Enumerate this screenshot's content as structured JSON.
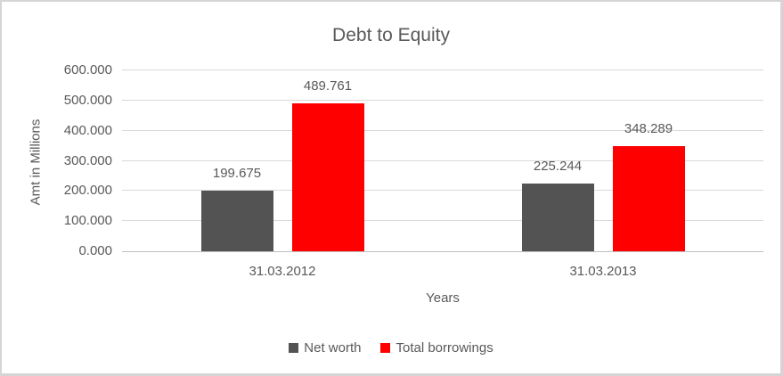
{
  "chart_data": {
    "type": "bar",
    "title": "Debt to Equity",
    "xlabel": "Years",
    "ylabel": "Amt in Millions",
    "categories": [
      "31.03.2012",
      "31.03.2013"
    ],
    "series": [
      {
        "name": "Net worth",
        "color": "#535353",
        "values": [
          199.675,
          225.244
        ]
      },
      {
        "name": "Total borrowings",
        "color": "#ff0000",
        "values": [
          489.761,
          348.289
        ]
      }
    ],
    "data_labels": [
      [
        "199.675",
        "225.244"
      ],
      [
        "489.761",
        "348.289"
      ]
    ],
    "ylim": [
      0,
      600
    ],
    "ytick_step": 100,
    "ytick_labels": [
      "0.000",
      "100.000",
      "200.000",
      "300.000",
      "400.000",
      "500.000",
      "600.000"
    ],
    "grid": true,
    "legend_position": "bottom",
    "colors": {
      "text": "#595959",
      "gridline": "#d9d9d9",
      "axis_line": "#bfbfbf",
      "frame_border": "#d5d5d5",
      "background": "#ffffff"
    }
  }
}
